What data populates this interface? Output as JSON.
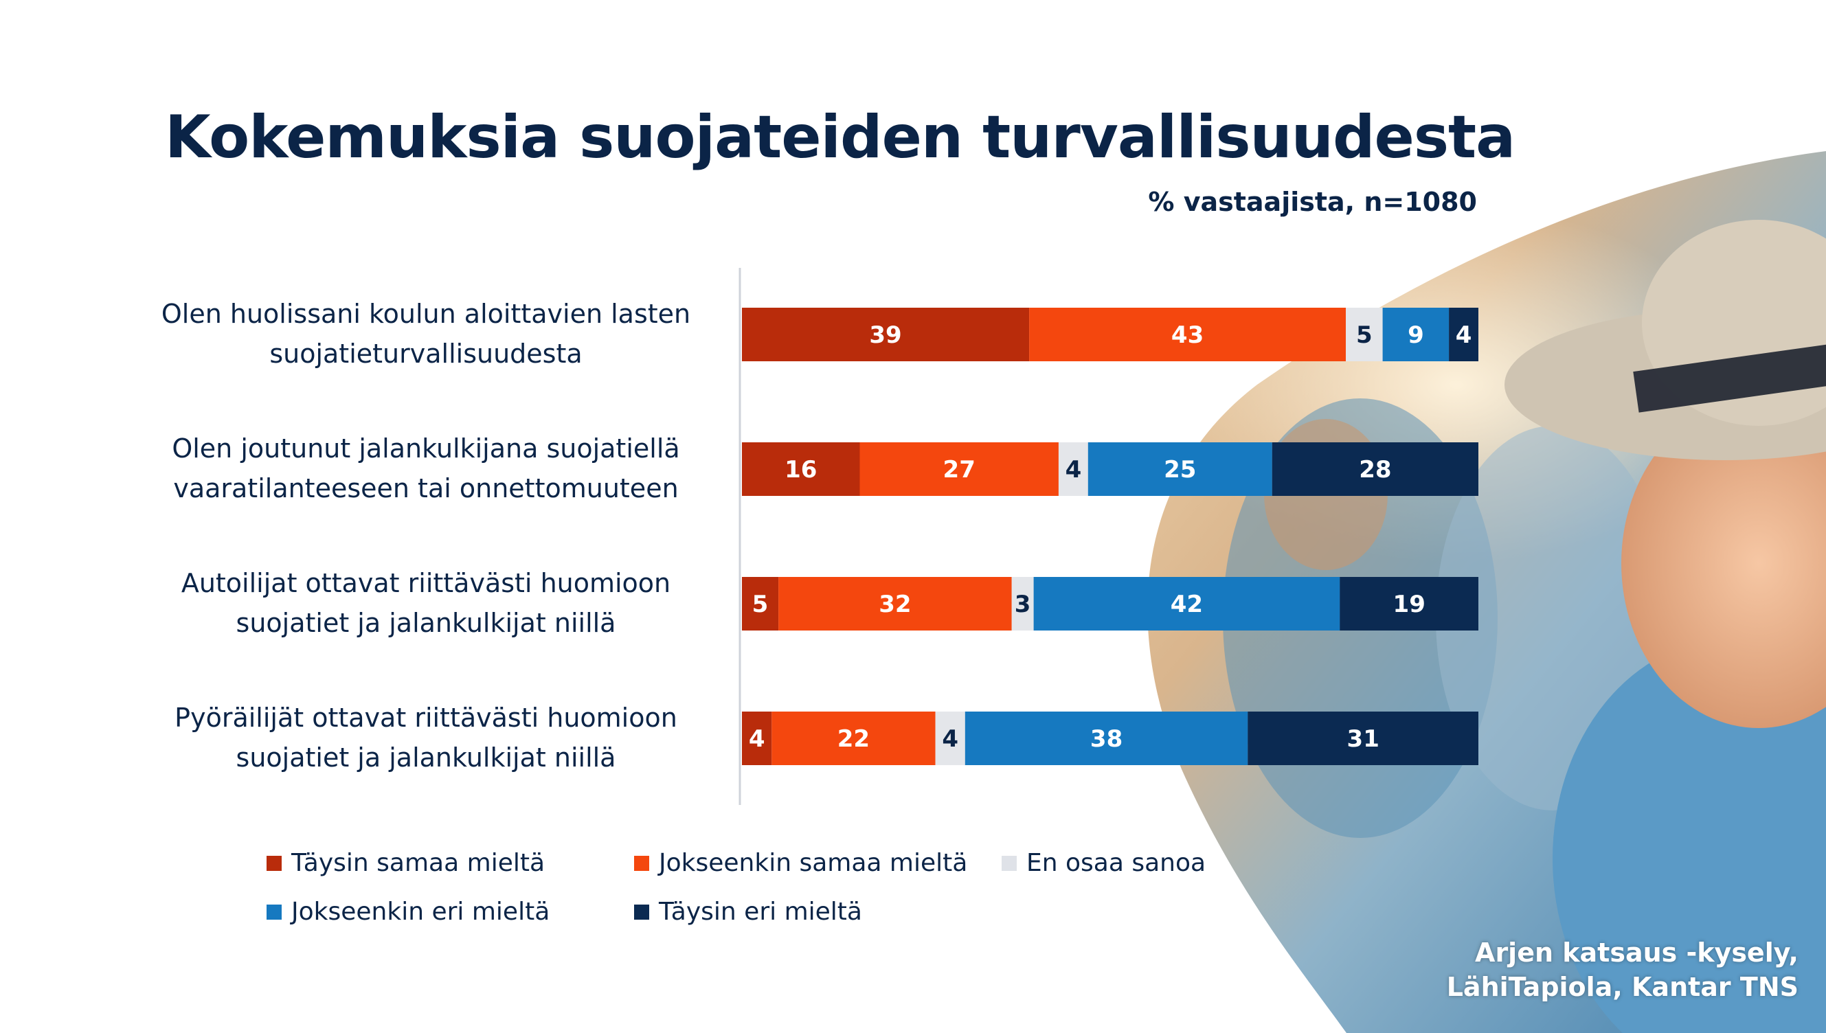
{
  "title": "Kokemuksia suojateiden turvallisuudesta",
  "subtitle": "% vastaajista,  n=1080",
  "source": {
    "line1": "Arjen katsaus -kysely,",
    "line2": "LähiTapiola, Kantar TNS"
  },
  "colors": {
    "text": "#0b2447",
    "background": "#ffffff"
  },
  "chart_data": {
    "type": "bar",
    "orientation": "horizontal",
    "stacked": true,
    "categories": [
      [
        "Olen huolissani koulun aloittavien lasten",
        "suojatieturvallisuudesta"
      ],
      [
        "Olen joutunut jalankulkijana suojatiellä",
        "vaaratilanteeseen tai onnettomuuteen"
      ],
      [
        "Autoilijat ottavat riittävästi huomioon",
        "suojatiet ja jalankulkijat niillä"
      ],
      [
        "Pyöräilijät ottavat riittävästi huomioon",
        "suojatiet ja jalankulkijat niillä"
      ]
    ],
    "series": [
      {
        "name": "Täysin samaa mieltä",
        "color": "#b92c0b",
        "label_color": "#ffffff",
        "values": [
          39,
          16,
          5,
          4
        ]
      },
      {
        "name": "Jokseenkin samaa mieltä",
        "color": "#f4470e",
        "label_color": "#ffffff",
        "values": [
          43,
          27,
          32,
          22
        ]
      },
      {
        "name": "En osaa sanoa",
        "color": "#e4e6ea",
        "label_color": "#0b2447",
        "values": [
          5,
          4,
          3,
          4
        ]
      },
      {
        "name": "Jokseenkin eri mieltä",
        "color": "#1679c0",
        "label_color": "#ffffff",
        "values": [
          9,
          25,
          42,
          38
        ]
      },
      {
        "name": "Täysin eri mieltä",
        "color": "#0b2a52",
        "label_color": "#ffffff",
        "values": [
          4,
          28,
          19,
          31
        ]
      }
    ],
    "xlim": [
      0,
      100
    ],
    "grid": false,
    "legend_position": "bottom"
  }
}
